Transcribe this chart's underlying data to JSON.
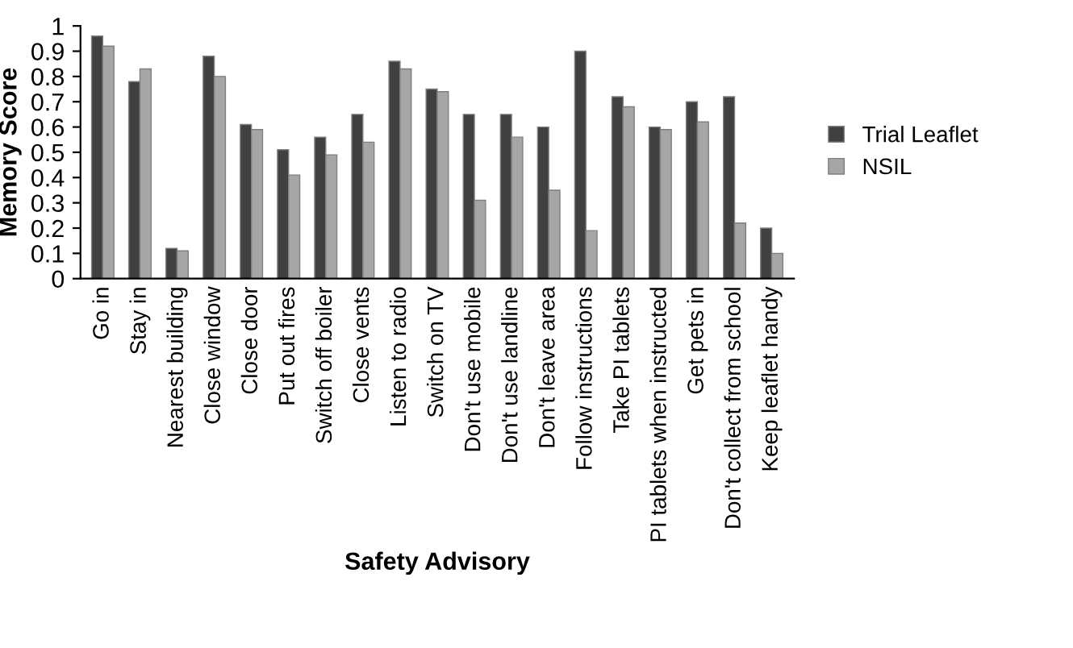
{
  "chart_data": {
    "type": "bar",
    "xlabel": "Safety Advisory",
    "ylabel": "Memory Score",
    "categories": [
      "Go in",
      "Stay in",
      "Nearest building",
      "Close window",
      "Close door",
      "Put out fires",
      "Switch off boiler",
      "Close vents",
      "Listen to radio",
      "Switch on TV",
      "Don't use mobile",
      "Don't use landline",
      "Don't leave area",
      "Follow instructions",
      "Take PI tablets",
      "PI tablets when instructed",
      "Get pets in",
      "Don't collect from school",
      "Keep leaflet handy"
    ],
    "series": [
      {
        "name": "Trial Leaflet",
        "color": "#404040",
        "values": [
          0.96,
          0.78,
          0.12,
          0.88,
          0.61,
          0.51,
          0.56,
          0.65,
          0.86,
          0.75,
          0.65,
          0.65,
          0.6,
          0.9,
          0.72,
          0.6,
          0.7,
          0.72,
          0.2
        ]
      },
      {
        "name": "NSIL",
        "color": "#a6a6a6",
        "values": [
          0.92,
          0.83,
          0.11,
          0.8,
          0.59,
          0.41,
          0.49,
          0.54,
          0.83,
          0.74,
          0.31,
          0.56,
          0.35,
          0.19,
          0.68,
          0.59,
          0.62,
          0.22,
          0.1
        ]
      }
    ],
    "ylim": [
      0,
      1
    ],
    "yticks": [
      0,
      0.1,
      0.2,
      0.3,
      0.4,
      0.5,
      0.6,
      0.7,
      0.8,
      0.9,
      1
    ],
    "grid": false,
    "legend": "right"
  }
}
